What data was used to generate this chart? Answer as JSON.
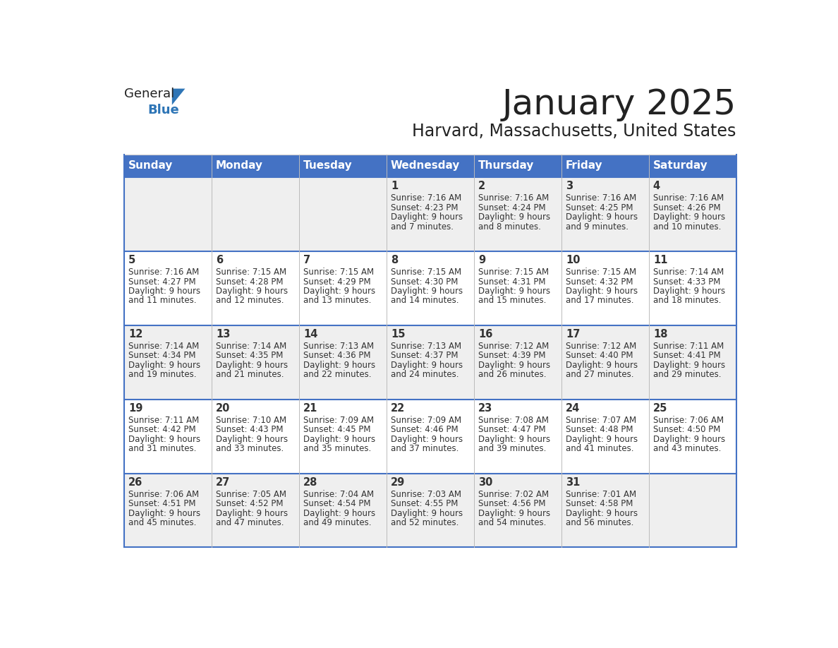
{
  "title": "January 2025",
  "subtitle": "Harvard, Massachusetts, United States",
  "header_bg": "#4472C4",
  "header_text_color": "#FFFFFF",
  "days_of_week": [
    "Sunday",
    "Monday",
    "Tuesday",
    "Wednesday",
    "Thursday",
    "Friday",
    "Saturday"
  ],
  "row_bg_even": "#EFEFEF",
  "row_bg_odd": "#FFFFFF",
  "line_color": "#4472C4",
  "grid_line_color": "#BBBBBB",
  "day_num_color": "#333333",
  "text_color": "#333333",
  "calendar_data": [
    [
      {
        "day": "",
        "sunrise": "",
        "sunset": "",
        "daylight": ""
      },
      {
        "day": "",
        "sunrise": "",
        "sunset": "",
        "daylight": ""
      },
      {
        "day": "",
        "sunrise": "",
        "sunset": "",
        "daylight": ""
      },
      {
        "day": "1",
        "sunrise": "7:16 AM",
        "sunset": "4:23 PM",
        "daylight": "9 hours and 7 minutes."
      },
      {
        "day": "2",
        "sunrise": "7:16 AM",
        "sunset": "4:24 PM",
        "daylight": "9 hours and 8 minutes."
      },
      {
        "day": "3",
        "sunrise": "7:16 AM",
        "sunset": "4:25 PM",
        "daylight": "9 hours and 9 minutes."
      },
      {
        "day": "4",
        "sunrise": "7:16 AM",
        "sunset": "4:26 PM",
        "daylight": "9 hours and 10 minutes."
      }
    ],
    [
      {
        "day": "5",
        "sunrise": "7:16 AM",
        "sunset": "4:27 PM",
        "daylight": "9 hours and 11 minutes."
      },
      {
        "day": "6",
        "sunrise": "7:15 AM",
        "sunset": "4:28 PM",
        "daylight": "9 hours and 12 minutes."
      },
      {
        "day": "7",
        "sunrise": "7:15 AM",
        "sunset": "4:29 PM",
        "daylight": "9 hours and 13 minutes."
      },
      {
        "day": "8",
        "sunrise": "7:15 AM",
        "sunset": "4:30 PM",
        "daylight": "9 hours and 14 minutes."
      },
      {
        "day": "9",
        "sunrise": "7:15 AM",
        "sunset": "4:31 PM",
        "daylight": "9 hours and 15 minutes."
      },
      {
        "day": "10",
        "sunrise": "7:15 AM",
        "sunset": "4:32 PM",
        "daylight": "9 hours and 17 minutes."
      },
      {
        "day": "11",
        "sunrise": "7:14 AM",
        "sunset": "4:33 PM",
        "daylight": "9 hours and 18 minutes."
      }
    ],
    [
      {
        "day": "12",
        "sunrise": "7:14 AM",
        "sunset": "4:34 PM",
        "daylight": "9 hours and 19 minutes."
      },
      {
        "day": "13",
        "sunrise": "7:14 AM",
        "sunset": "4:35 PM",
        "daylight": "9 hours and 21 minutes."
      },
      {
        "day": "14",
        "sunrise": "7:13 AM",
        "sunset": "4:36 PM",
        "daylight": "9 hours and 22 minutes."
      },
      {
        "day": "15",
        "sunrise": "7:13 AM",
        "sunset": "4:37 PM",
        "daylight": "9 hours and 24 minutes."
      },
      {
        "day": "16",
        "sunrise": "7:12 AM",
        "sunset": "4:39 PM",
        "daylight": "9 hours and 26 minutes."
      },
      {
        "day": "17",
        "sunrise": "7:12 AM",
        "sunset": "4:40 PM",
        "daylight": "9 hours and 27 minutes."
      },
      {
        "day": "18",
        "sunrise": "7:11 AM",
        "sunset": "4:41 PM",
        "daylight": "9 hours and 29 minutes."
      }
    ],
    [
      {
        "day": "19",
        "sunrise": "7:11 AM",
        "sunset": "4:42 PM",
        "daylight": "9 hours and 31 minutes."
      },
      {
        "day": "20",
        "sunrise": "7:10 AM",
        "sunset": "4:43 PM",
        "daylight": "9 hours and 33 minutes."
      },
      {
        "day": "21",
        "sunrise": "7:09 AM",
        "sunset": "4:45 PM",
        "daylight": "9 hours and 35 minutes."
      },
      {
        "day": "22",
        "sunrise": "7:09 AM",
        "sunset": "4:46 PM",
        "daylight": "9 hours and 37 minutes."
      },
      {
        "day": "23",
        "sunrise": "7:08 AM",
        "sunset": "4:47 PM",
        "daylight": "9 hours and 39 minutes."
      },
      {
        "day": "24",
        "sunrise": "7:07 AM",
        "sunset": "4:48 PM",
        "daylight": "9 hours and 41 minutes."
      },
      {
        "day": "25",
        "sunrise": "7:06 AM",
        "sunset": "4:50 PM",
        "daylight": "9 hours and 43 minutes."
      }
    ],
    [
      {
        "day": "26",
        "sunrise": "7:06 AM",
        "sunset": "4:51 PM",
        "daylight": "9 hours and 45 minutes."
      },
      {
        "day": "27",
        "sunrise": "7:05 AM",
        "sunset": "4:52 PM",
        "daylight": "9 hours and 47 minutes."
      },
      {
        "day": "28",
        "sunrise": "7:04 AM",
        "sunset": "4:54 PM",
        "daylight": "9 hours and 49 minutes."
      },
      {
        "day": "29",
        "sunrise": "7:03 AM",
        "sunset": "4:55 PM",
        "daylight": "9 hours and 52 minutes."
      },
      {
        "day": "30",
        "sunrise": "7:02 AM",
        "sunset": "4:56 PM",
        "daylight": "9 hours and 54 minutes."
      },
      {
        "day": "31",
        "sunrise": "7:01 AM",
        "sunset": "4:58 PM",
        "daylight": "9 hours and 56 minutes."
      },
      {
        "day": "",
        "sunrise": "",
        "sunset": "",
        "daylight": ""
      }
    ]
  ],
  "logo_general_color": "#222222",
  "logo_blue_color": "#2E75B6",
  "logo_triangle_color": "#2E75B6",
  "title_color": "#222222",
  "subtitle_color": "#222222"
}
